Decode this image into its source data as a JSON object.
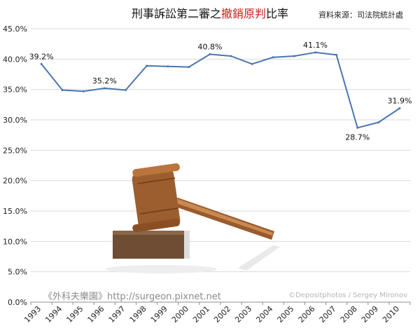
{
  "chart_data": {
    "type": "line",
    "title_parts": [
      "刑事訴訟第二審之",
      "撤銷原判",
      "比率"
    ],
    "source": "資料來源：司法院統計處",
    "watermark": "《外科夫樂園》http://surgeon.pixnet.net",
    "credit": "©Depositphotos / Sergey Mironov",
    "x": [
      "1993",
      "1994",
      "1995",
      "1996",
      "1997",
      "1998",
      "1999",
      "2000",
      "2001",
      "2002",
      "2003",
      "2004",
      "2005",
      "2006",
      "2007",
      "2008",
      "2009",
      "2010"
    ],
    "y_ticks": [
      "0.0%",
      "5.0%",
      "10.0%",
      "15.0%",
      "20.0%",
      "25.0%",
      "30.0%",
      "35.0%",
      "40.0%",
      "45.0%"
    ],
    "ylim": [
      0,
      45
    ],
    "series": [
      {
        "values": [
          39.2,
          34.9,
          34.7,
          35.2,
          34.9,
          38.9,
          38.8,
          38.7,
          40.8,
          40.5,
          39.2,
          40.3,
          40.5,
          41.1,
          40.7,
          28.7,
          29.6,
          31.9
        ],
        "color": "#4a76b0"
      }
    ],
    "data_labels": [
      {
        "index": 0,
        "text": "39.2%",
        "position": "above"
      },
      {
        "index": 3,
        "text": "35.2%",
        "position": "above"
      },
      {
        "index": 8,
        "text": "40.8%",
        "position": "above"
      },
      {
        "index": 13,
        "text": "41.1%",
        "position": "above"
      },
      {
        "index": 15,
        "text": "28.7%",
        "position": "below"
      },
      {
        "index": 17,
        "text": "31.9%",
        "position": "above"
      }
    ],
    "grid": true,
    "legend": "none",
    "colors": {
      "title_highlight": "#d11a1a",
      "gridline": "#d9d9d9",
      "axis": "#8c8c8c"
    },
    "illustration": "gavel-icon"
  }
}
